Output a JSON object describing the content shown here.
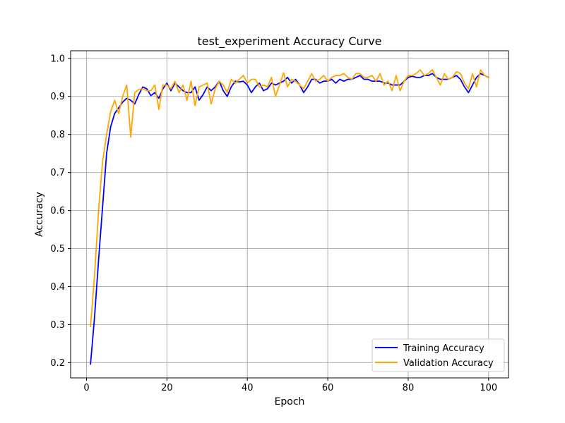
{
  "chart_data": {
    "type": "line",
    "title": "test_experiment Accuracy Curve",
    "xlabel": "Epoch",
    "ylabel": "Accuracy",
    "xlim": [
      -3.95,
      104.95
    ],
    "ylim": [
      0.16,
      1.02
    ],
    "xticks": [
      0,
      20,
      40,
      60,
      80,
      100
    ],
    "yticks": [
      0.2,
      0.3,
      0.4,
      0.5,
      0.6,
      0.7,
      0.8,
      0.9,
      1.0
    ],
    "ytick_labels": [
      "0.2",
      "0.3",
      "0.4",
      "0.5",
      "0.6",
      "0.7",
      "0.8",
      "0.9",
      "1.0"
    ],
    "grid": true,
    "legend_position": "bottom-right",
    "x": [
      1,
      2,
      3,
      4,
      5,
      6,
      7,
      8,
      9,
      10,
      11,
      12,
      13,
      14,
      15,
      16,
      17,
      18,
      19,
      20,
      21,
      22,
      23,
      24,
      25,
      26,
      27,
      28,
      29,
      30,
      31,
      32,
      33,
      34,
      35,
      36,
      37,
      38,
      39,
      40,
      41,
      42,
      43,
      44,
      45,
      46,
      47,
      48,
      49,
      50,
      51,
      52,
      53,
      54,
      55,
      56,
      57,
      58,
      59,
      60,
      61,
      62,
      63,
      64,
      65,
      66,
      67,
      68,
      69,
      70,
      71,
      72,
      73,
      74,
      75,
      76,
      77,
      78,
      79,
      80,
      81,
      82,
      83,
      84,
      85,
      86,
      87,
      88,
      89,
      90,
      91,
      92,
      93,
      94,
      95,
      96,
      97,
      98,
      99,
      100
    ],
    "series": [
      {
        "name": "Training Accuracy",
        "color": "#0000ff",
        "values": [
          0.196,
          0.32,
          0.47,
          0.61,
          0.75,
          0.82,
          0.855,
          0.87,
          0.885,
          0.895,
          0.89,
          0.88,
          0.905,
          0.925,
          0.92,
          0.902,
          0.91,
          0.895,
          0.92,
          0.935,
          0.915,
          0.935,
          0.925,
          0.915,
          0.91,
          0.91,
          0.925,
          0.89,
          0.905,
          0.925,
          0.915,
          0.925,
          0.94,
          0.915,
          0.9,
          0.925,
          0.94,
          0.938,
          0.94,
          0.93,
          0.91,
          0.925,
          0.935,
          0.915,
          0.92,
          0.935,
          0.93,
          0.935,
          0.94,
          0.95,
          0.935,
          0.945,
          0.93,
          0.91,
          0.925,
          0.945,
          0.945,
          0.935,
          0.94,
          0.94,
          0.945,
          0.935,
          0.945,
          0.94,
          0.945,
          0.945,
          0.95,
          0.955,
          0.945,
          0.945,
          0.94,
          0.94,
          0.94,
          0.935,
          0.935,
          0.93,
          0.93,
          0.93,
          0.94,
          0.95,
          0.953,
          0.95,
          0.95,
          0.955,
          0.955,
          0.96,
          0.95,
          0.945,
          0.945,
          0.945,
          0.95,
          0.955,
          0.945,
          0.925,
          0.91,
          0.93,
          0.95,
          0.96,
          0.955,
          0.95
        ]
      },
      {
        "name": "Validation Accuracy",
        "color": "#ffa500",
        "values": [
          0.295,
          0.43,
          0.6,
          0.73,
          0.8,
          0.86,
          0.89,
          0.855,
          0.9,
          0.93,
          0.793,
          0.91,
          0.918,
          0.92,
          0.915,
          0.915,
          0.93,
          0.866,
          0.93,
          0.93,
          0.92,
          0.94,
          0.91,
          0.93,
          0.89,
          0.94,
          0.876,
          0.925,
          0.93,
          0.935,
          0.88,
          0.92,
          0.94,
          0.93,
          0.91,
          0.945,
          0.935,
          0.945,
          0.955,
          0.935,
          0.945,
          0.945,
          0.925,
          0.93,
          0.925,
          0.95,
          0.9,
          0.93,
          0.962,
          0.925,
          0.945,
          0.94,
          0.93,
          0.92,
          0.94,
          0.96,
          0.94,
          0.945,
          0.955,
          0.94,
          0.95,
          0.955,
          0.955,
          0.96,
          0.95,
          0.945,
          0.96,
          0.96,
          0.95,
          0.95,
          0.955,
          0.94,
          0.96,
          0.93,
          0.94,
          0.915,
          0.955,
          0.915,
          0.94,
          0.955,
          0.955,
          0.96,
          0.97,
          0.955,
          0.96,
          0.97,
          0.95,
          0.93,
          0.96,
          0.945,
          0.95,
          0.965,
          0.96,
          0.935,
          0.92,
          0.96,
          0.925,
          0.97,
          0.955,
          0.95
        ]
      }
    ]
  }
}
